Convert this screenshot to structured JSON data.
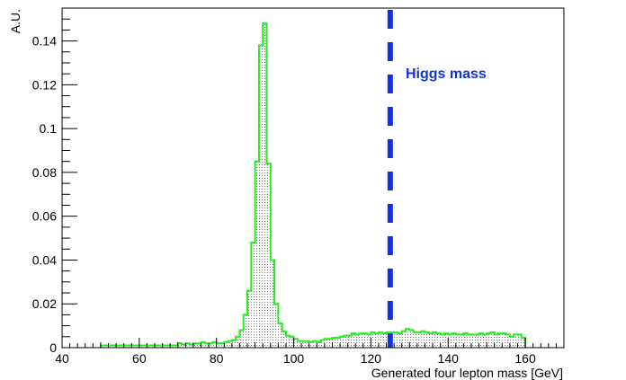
{
  "chart_data": {
    "type": "histogram",
    "title": "",
    "xlabel": "Generated four lepton mass [GeV]",
    "ylabel": "A.U.",
    "xlim": [
      40,
      170
    ],
    "ylim": [
      0,
      0.155
    ],
    "x_ticks": [
      "40",
      "60",
      "80",
      "100",
      "120",
      "140",
      "160"
    ],
    "y_ticks": [
      "0",
      "0.02",
      "0.04",
      "0.06",
      "0.08",
      "0.1",
      "0.12",
      "0.14"
    ],
    "grid": false,
    "legend": "none",
    "bin_width": 1,
    "series": [
      {
        "color": "#22ee22",
        "fill": "hatched",
        "bins_x_start": 50,
        "values": [
          0.001,
          0.001,
          0.001,
          0.001,
          0.001,
          0.001,
          0.001,
          0.001,
          0.001,
          0.001,
          0.001,
          0.001,
          0.001,
          0.001,
          0.001,
          0.001,
          0.001,
          0.001,
          0.001,
          0.001,
          0.002,
          0.0015,
          0.002,
          0.0015,
          0.002,
          0.002,
          0.0025,
          0.002,
          0.002,
          0.0025,
          0.002,
          0.002,
          0.0025,
          0.003,
          0.0035,
          0.005,
          0.008,
          0.015,
          0.026,
          0.048,
          0.085,
          0.138,
          0.148,
          0.084,
          0.04,
          0.02,
          0.011,
          0.0075,
          0.0055,
          0.005,
          0.004,
          0.003,
          0.003,
          0.003,
          0.0025,
          0.003,
          0.0025,
          0.0035,
          0.004,
          0.004,
          0.0045,
          0.0045,
          0.005,
          0.0055,
          0.0055,
          0.0065,
          0.006,
          0.0065,
          0.0065,
          0.006,
          0.007,
          0.0065,
          0.007,
          0.0065,
          0.007,
          0.007,
          0.007,
          0.0065,
          0.0075,
          0.0085,
          0.008,
          0.007,
          0.007,
          0.0075,
          0.007,
          0.0065,
          0.007,
          0.0065,
          0.006,
          0.0065,
          0.006,
          0.0065,
          0.006,
          0.006,
          0.0065,
          0.006,
          0.006,
          0.006,
          0.0065,
          0.006,
          0.0065,
          0.007,
          0.006,
          0.0065,
          0.0065,
          0.006,
          0.005,
          0.006,
          0.006,
          0.0045
        ]
      }
    ],
    "reference_line": {
      "x": 125,
      "color": "#1133dd",
      "style": "dashed"
    },
    "annotations": [
      {
        "text": "Higgs mass",
        "x": 129,
        "y": 0.123,
        "color": "#1133dd"
      }
    ]
  }
}
